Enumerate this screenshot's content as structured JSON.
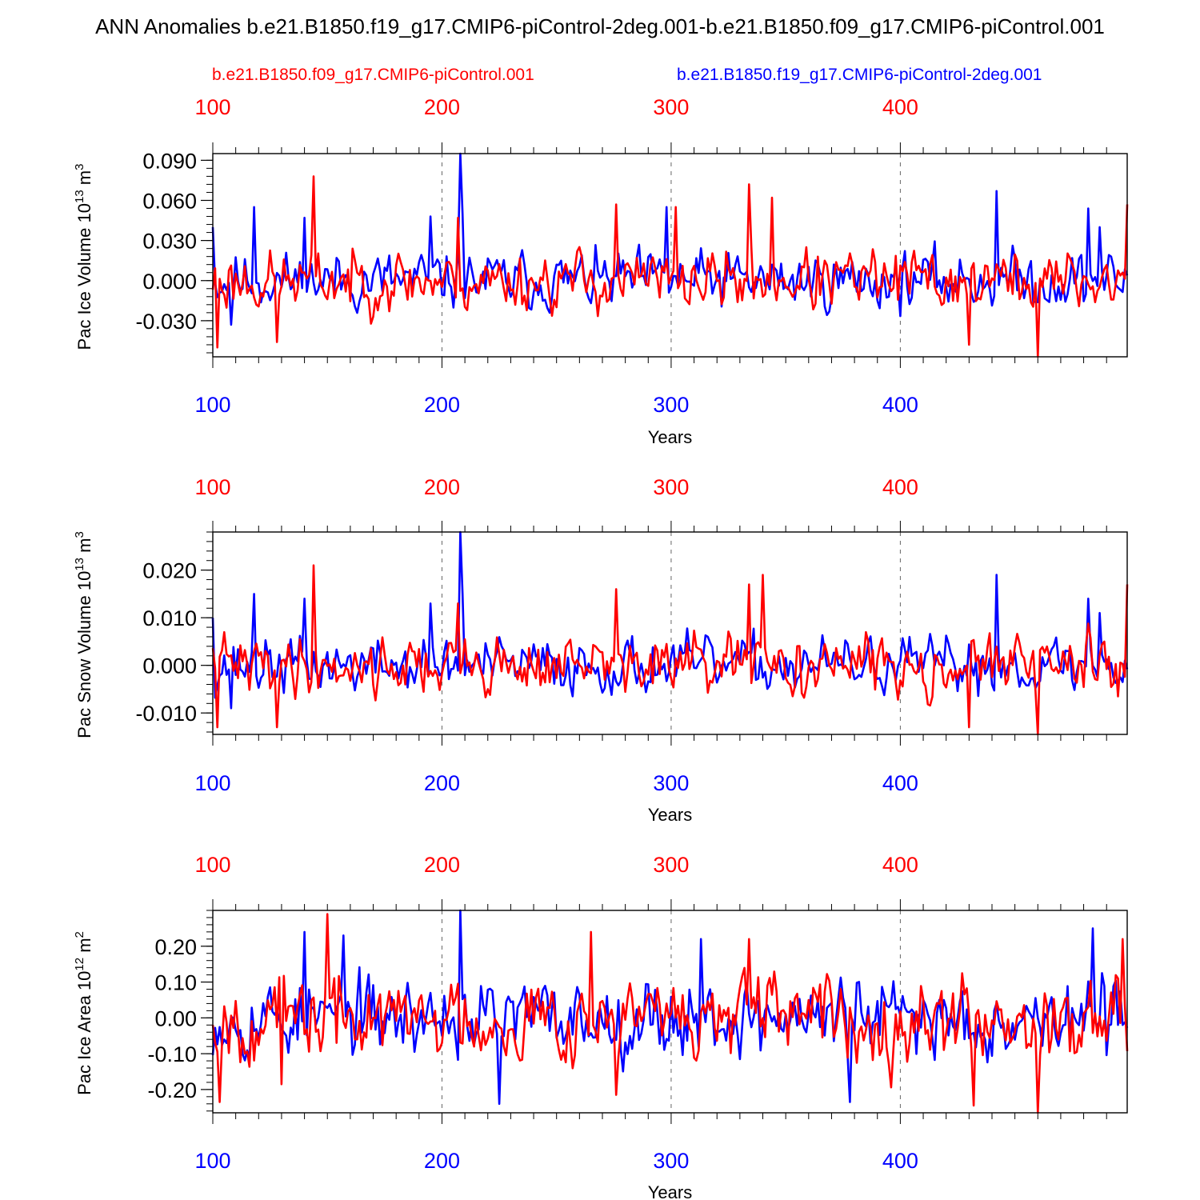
{
  "figure": {
    "title": "ANN Anomalies b.e21.B1850.f19_g17.CMIP6-piControl-2deg.001-b.e21.B1850.f09_g17.CMIP6-piControl.001",
    "legend_red": "b.e21.B1850.f09_g17.CMIP6-piControl.001",
    "legend_blue": "b.e21.B1850.f19_g17.CMIP6-piControl-2deg.001",
    "colors": {
      "red": "#ff0000",
      "blue": "#0000ff",
      "axis": "#000000",
      "grid": "#666666"
    }
  },
  "chart_data": [
    {
      "type": "line",
      "ylabel_main": "Pac Ice Volume 10",
      "ylabel_exp": "13",
      "ylabel_unit": " m",
      "ylabel_unit_exp": "3",
      "xlabel": "Years",
      "xlim": [
        100,
        499
      ],
      "ylim": [
        -0.057,
        0.095
      ],
      "yticks": [
        -0.03,
        0.0,
        0.03,
        0.06,
        0.09
      ],
      "ytick_labels": [
        "-0.030",
        "0.000",
        "0.030",
        "0.060",
        "0.090"
      ],
      "xticks": [
        100,
        200,
        300,
        400
      ],
      "xtick_labels": [
        "100",
        "200",
        "300",
        "400"
      ],
      "series": [
        {
          "name": "b.e21.B1850.f19_g17.CMIP6-piControl-2deg.001",
          "color": "blue",
          "amplitude": 0.017,
          "seed": 11,
          "extremes": [
            [
              100,
              0.04
            ],
            [
              108,
              -0.033
            ],
            [
              118,
              0.055
            ],
            [
              140,
              0.047
            ],
            [
              195,
              0.048
            ],
            [
              208,
              0.095
            ],
            [
              209,
              0.05
            ],
            [
              298,
              0.055
            ],
            [
              442,
              0.067
            ],
            [
              482,
              0.054
            ],
            [
              487,
              0.04
            ]
          ]
        },
        {
          "name": "b.e21.B1850.f09_g17.CMIP6-piControl.001",
          "color": "red",
          "amplitude": 0.018,
          "seed": 23,
          "extremes": [
            [
              102,
              -0.05
            ],
            [
              128,
              -0.046
            ],
            [
              144,
              0.078
            ],
            [
              207,
              0.047
            ],
            [
              276,
              0.057
            ],
            [
              302,
              0.055
            ],
            [
              334,
              0.072
            ],
            [
              344,
              0.062
            ],
            [
              430,
              -0.048
            ],
            [
              460,
              -0.057
            ],
            [
              499,
              0.057
            ]
          ]
        }
      ]
    },
    {
      "type": "line",
      "ylabel_main": "Pac Snow Volume 10",
      "ylabel_exp": "13",
      "ylabel_unit": " m",
      "ylabel_unit_exp": "3",
      "xlabel": "Years",
      "xlim": [
        100,
        499
      ],
      "ylim": [
        -0.0145,
        0.028
      ],
      "yticks": [
        -0.01,
        0.0,
        0.01,
        0.02
      ],
      "ytick_labels": [
        "-0.010",
        "0.000",
        "0.010",
        "0.020"
      ],
      "xticks": [
        100,
        200,
        300,
        400
      ],
      "xtick_labels": [
        "100",
        "200",
        "300",
        "400"
      ],
      "series": [
        {
          "name": "b.e21.B1850.f19_g17.CMIP6-piControl-2deg.001",
          "color": "blue",
          "amplitude": 0.0045,
          "seed": 37,
          "extremes": [
            [
              100,
              0.01
            ],
            [
              108,
              -0.009
            ],
            [
              118,
              0.015
            ],
            [
              140,
              0.014
            ],
            [
              195,
              0.013
            ],
            [
              208,
              0.028
            ],
            [
              209,
              0.015
            ],
            [
              442,
              0.019
            ],
            [
              482,
              0.014
            ],
            [
              487,
              0.011
            ]
          ]
        },
        {
          "name": "b.e21.B1850.f09_g17.CMIP6-piControl.001",
          "color": "red",
          "amplitude": 0.0048,
          "seed": 41,
          "extremes": [
            [
              102,
              -0.013
            ],
            [
              128,
              -0.013
            ],
            [
              144,
              0.021
            ],
            [
              207,
              0.013
            ],
            [
              276,
              0.016
            ],
            [
              334,
              0.017
            ],
            [
              340,
              0.019
            ],
            [
              430,
              -0.013
            ],
            [
              460,
              -0.0145
            ],
            [
              499,
              0.017
            ]
          ]
        }
      ]
    },
    {
      "type": "line",
      "ylabel_main": "Pac Ice Area 10",
      "ylabel_exp": "12",
      "ylabel_unit": " m",
      "ylabel_unit_exp": "2",
      "xlabel": "Years",
      "xlim": [
        100,
        499
      ],
      "ylim": [
        -0.265,
        0.3
      ],
      "yticks": [
        -0.2,
        -0.1,
        0.0,
        0.1,
        0.2
      ],
      "ytick_labels": [
        "-0.20",
        "-0.10",
        "0.00",
        "0.10",
        "0.20"
      ],
      "xticks": [
        100,
        200,
        300,
        400
      ],
      "xtick_labels": [
        "100",
        "200",
        "300",
        "400"
      ],
      "series": [
        {
          "name": "b.e21.B1850.f19_g17.CMIP6-piControl-2deg.001",
          "color": "blue",
          "amplitude": 0.085,
          "seed": 53,
          "extremes": [
            [
              140,
              0.24
            ],
            [
              157,
              0.23
            ],
            [
              208,
              0.3
            ],
            [
              225,
              -0.24
            ],
            [
              313,
              0.22
            ],
            [
              378,
              -0.235
            ],
            [
              484,
              0.25
            ]
          ]
        },
        {
          "name": "b.e21.B1850.f09_g17.CMIP6-piControl.001",
          "color": "red",
          "amplitude": 0.09,
          "seed": 67,
          "extremes": [
            [
              103,
              -0.235
            ],
            [
              130,
              -0.185
            ],
            [
              150,
              0.29
            ],
            [
              265,
              0.24
            ],
            [
              276,
              -0.215
            ],
            [
              334,
              0.22
            ],
            [
              432,
              -0.245
            ],
            [
              460,
              -0.265
            ],
            [
              497,
              0.22
            ]
          ]
        }
      ]
    }
  ]
}
